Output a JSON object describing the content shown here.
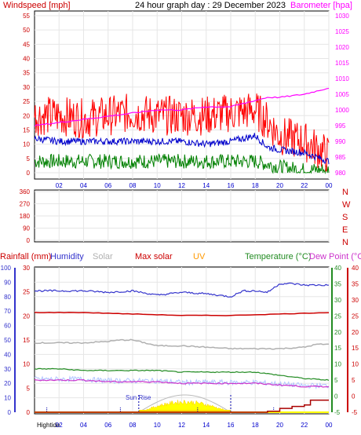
{
  "header": {
    "title": "24 hour graph day : 29 December 2023",
    "left_label": "Windspeed [mph]",
    "right_label": "Barometer [hpa]"
  },
  "panel_labels": {
    "rainfall": "Rainfall (mm)",
    "humidity": "Humidity",
    "solar": "Solar",
    "max_solar": "Max solar",
    "uv": "UV",
    "temperature": "Temperature (°C)",
    "dew_point": "Dew Point (°C)",
    "sunrise": "Sun Rise",
    "hightide": "Hightide"
  },
  "colors": {
    "wind_gust": "#ff0000",
    "wind_avg": "#0000cc",
    "wind_low": "#008000",
    "barometer": "#ff00ff",
    "direction": "#dd2222",
    "humidity": "#3333cc",
    "max_solar": "#cc0000",
    "solar": "#b0b0b0",
    "temperature": "#228b22",
    "dew_point": "#cc33cc",
    "uv": "#ff9900",
    "sun_fill": "#ffff00",
    "rain": "#aa0000"
  },
  "chart_data": [
    {
      "type": "line",
      "name": "wind-barometer",
      "x_ticks": [
        "02",
        "04",
        "06",
        "08",
        "10",
        "12",
        "14",
        "16",
        "18",
        "20",
        "22",
        "00"
      ],
      "ylim_left": [
        0,
        55
      ],
      "y_ticks_left": [
        0,
        5,
        10,
        15,
        20,
        25,
        30,
        35,
        40,
        45,
        50,
        55
      ],
      "ylim_right": [
        980,
        1030
      ],
      "y_ticks_right": [
        980,
        985,
        990,
        995,
        1000,
        1005,
        1010,
        1015,
        1020,
        1025,
        1030
      ],
      "series": [
        {
          "key": "gust",
          "x": [
            0,
            2,
            4,
            6,
            8,
            10,
            12,
            14,
            16,
            18,
            19,
            20,
            22,
            24
          ],
          "y": [
            20,
            20,
            19,
            20,
            21,
            20,
            20,
            20,
            21,
            22,
            18,
            13,
            11,
            6
          ]
        },
        {
          "key": "avg",
          "x": [
            0,
            2,
            4,
            6,
            8,
            10,
            12,
            14,
            16,
            18,
            18.5,
            19,
            20,
            22,
            24
          ],
          "y": [
            12,
            11,
            11,
            11,
            11,
            11,
            11,
            10,
            11,
            13,
            11,
            9,
            8,
            7,
            4
          ]
        },
        {
          "key": "low",
          "x": [
            0,
            2,
            4,
            6,
            8,
            10,
            12,
            14,
            16,
            18,
            19,
            20,
            22,
            24
          ],
          "y": [
            4,
            4,
            4,
            4,
            4,
            4,
            4,
            4,
            4,
            4,
            3,
            2,
            1,
            1
          ]
        },
        {
          "key": "baro",
          "x": [
            0,
            2,
            4,
            6,
            8,
            10,
            12,
            14,
            16,
            18,
            19,
            20,
            22,
            23,
            24
          ],
          "y": [
            995,
            996,
            997,
            998,
            999,
            1000,
            1000,
            1001,
            1001,
            1003,
            1004,
            1004,
            1005,
            1006,
            1007
          ]
        }
      ]
    },
    {
      "type": "line",
      "name": "wind-direction",
      "ylim": [
        0,
        360
      ],
      "y_ticks": [
        0,
        90,
        180,
        270,
        360
      ],
      "directions": [
        "N",
        "W",
        "S",
        "E",
        "N"
      ],
      "series": [
        {
          "key": "dir",
          "x": [
            0,
            2,
            4,
            6,
            8,
            10,
            11,
            12,
            14,
            16,
            18,
            20,
            21,
            22,
            24
          ],
          "y": [
            240,
            250,
            250,
            255,
            258,
            262,
            272,
            250,
            262,
            268,
            282,
            295,
            282,
            290,
            282
          ]
        }
      ]
    },
    {
      "type": "line",
      "name": "rain-humidity-solar-temperature",
      "x_ticks": [
        "02",
        "04",
        "06",
        "08",
        "10",
        "12",
        "14",
        "16",
        "18",
        "20",
        "22",
        "00"
      ],
      "ylim_humidity": [
        0,
        100
      ],
      "y_ticks_humidity": [
        0,
        10,
        20,
        30,
        40,
        50,
        60,
        70,
        80,
        90,
        100
      ],
      "ylim_rain": [
        0,
        30
      ],
      "y_ticks_rain": [
        0,
        5,
        10,
        15,
        20,
        25,
        30
      ],
      "ylim_temp": [
        -5,
        40
      ],
      "y_ticks_temp": [
        -5,
        0,
        5,
        10,
        15,
        20,
        25,
        30,
        35,
        40
      ],
      "series": [
        {
          "key": "humidity",
          "x": [
            0,
            2,
            4,
            6,
            8,
            10,
            12,
            14,
            16,
            17,
            18,
            19,
            20,
            21,
            22,
            24
          ],
          "y": [
            84,
            84,
            84,
            83,
            84,
            81,
            83,
            82,
            80,
            84,
            84,
            83,
            89,
            89,
            88,
            88
          ]
        },
        {
          "key": "max_solar",
          "x": [
            0,
            4,
            8,
            12,
            16,
            20,
            24
          ],
          "y": [
            69,
            69,
            68,
            67,
            67,
            68,
            69
          ]
        },
        {
          "key": "solar",
          "x": [
            0,
            2,
            4,
            6,
            7,
            8,
            10,
            12,
            14,
            16,
            18,
            20,
            22,
            23,
            24
          ],
          "y": [
            48,
            48,
            48,
            49,
            50,
            50,
            46,
            46,
            45,
            44,
            44,
            44,
            45,
            47,
            47
          ]
        },
        {
          "key": "temperature",
          "x": [
            0,
            2,
            4,
            6,
            8,
            10,
            12,
            14,
            16,
            18,
            20,
            22,
            24
          ],
          "y": [
            8.5,
            8.5,
            8,
            8,
            8,
            8,
            7.5,
            7.5,
            7.5,
            7.5,
            6.5,
            5.5,
            5
          ]
        },
        {
          "key": "dew_point",
          "x": [
            0,
            2,
            4,
            6,
            8,
            10,
            12,
            14,
            16,
            18,
            20,
            22,
            24
          ],
          "y": [
            5,
            5,
            5,
            4.5,
            4.5,
            4.5,
            4,
            4,
            4,
            4,
            3.5,
            3,
            3
          ]
        },
        {
          "key": "rain",
          "x": [
            0,
            18,
            19,
            20,
            21,
            22,
            22.5,
            24
          ],
          "y": [
            0,
            0,
            0.2,
            0.8,
            1.2,
            1.5,
            2.5,
            2.5
          ]
        }
      ]
    }
  ]
}
